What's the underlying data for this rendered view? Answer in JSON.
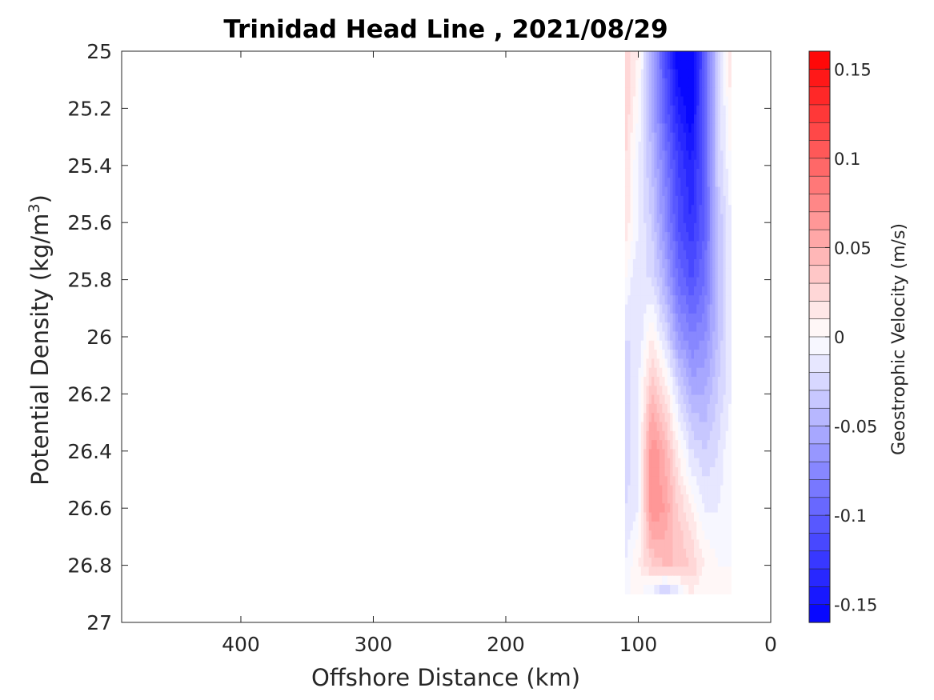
{
  "chart_data": {
    "type": "heatmap",
    "title": "Trinidad Head Line , 2021/08/29",
    "xlabel": "Offshore Distance (km)",
    "ylabel_main": "Potential Density (kg/m",
    "ylabel_sup": "3",
    "ylabel_close": ")",
    "colorbar_label": "Geostrophic Velocity (m/s)",
    "xlim": [
      490,
      0
    ],
    "ylim": [
      25,
      27
    ],
    "x_reversed": true,
    "y_reversed": true,
    "clim": [
      -0.16,
      0.16
    ],
    "colormap": "blue-white-red",
    "color_low": "#0000ff",
    "color_mid": "#ffffff",
    "color_high": "#ff0000",
    "x_ticks": [
      400,
      300,
      200,
      100,
      0
    ],
    "y_ticks": [
      25,
      25.2,
      25.4,
      25.6,
      25.8,
      26,
      26.2,
      26.4,
      26.6,
      26.8,
      27
    ],
    "y_tick_labels": [
      "25",
      "25.2",
      "25.4",
      "25.6",
      "25.8",
      "26",
      "26.2",
      "26.4",
      "26.6",
      "26.8",
      "27"
    ],
    "cbar_ticks": [
      0.15,
      0.1,
      0.05,
      0,
      -0.05,
      -0.1,
      -0.15
    ],
    "cbar_tick_labels": [
      "0.15",
      "0.1",
      "0.05",
      "0",
      "-0.05",
      "-0.1",
      "-0.15"
    ],
    "data_extent_x": [
      110,
      30
    ],
    "stations_x": [
      110,
      100,
      90,
      80,
      70,
      60,
      50,
      40,
      30
    ],
    "density_levels": [
      25.0,
      25.2,
      25.4,
      25.6,
      25.8,
      26.0,
      26.2,
      26.4,
      26.6,
      26.8,
      26.9
    ],
    "velocity": [
      [
        0.03,
        0.01,
        -0.05,
        -0.11,
        -0.16,
        -0.17,
        -0.1,
        -0.03,
        0.02
      ],
      [
        0.03,
        0.0,
        -0.05,
        -0.1,
        -0.14,
        -0.16,
        -0.1,
        -0.03,
        0.01
      ],
      [
        0.02,
        -0.01,
        -0.04,
        -0.08,
        -0.12,
        -0.14,
        -0.1,
        -0.03,
        0.0
      ],
      [
        0.02,
        -0.01,
        -0.03,
        -0.07,
        -0.11,
        -0.13,
        -0.1,
        -0.04,
        -0.01
      ],
      [
        0.0,
        -0.02,
        -0.02,
        -0.05,
        -0.09,
        -0.11,
        -0.09,
        -0.04,
        -0.01
      ],
      [
        -0.02,
        -0.02,
        0.01,
        -0.02,
        -0.06,
        -0.08,
        -0.07,
        -0.04,
        -0.01
      ],
      [
        -0.03,
        -0.01,
        0.04,
        0.02,
        -0.02,
        -0.05,
        -0.05,
        -0.03,
        -0.01
      ],
      [
        -0.03,
        -0.01,
        0.07,
        0.05,
        0.01,
        -0.02,
        -0.03,
        -0.02,
        0.0
      ],
      [
        -0.02,
        -0.01,
        0.07,
        0.06,
        0.03,
        0.01,
        -0.01,
        -0.01,
        0.0
      ],
      [
        -0.01,
        0.01,
        0.03,
        0.04,
        0.04,
        0.03,
        0.01,
        0.0,
        0.0
      ],
      [
        0.0,
        0.0,
        -0.01,
        -0.04,
        -0.02,
        0.01,
        0.0,
        0.0,
        0.0
      ]
    ]
  }
}
